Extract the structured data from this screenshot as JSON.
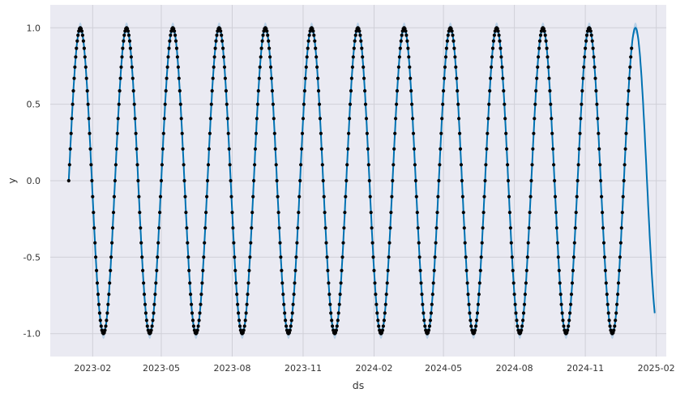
{
  "chart_data": {
    "type": "line",
    "title": "",
    "xlabel": "ds",
    "ylabel": "y",
    "x_range": [
      "2022-12-08",
      "2025-02-14"
    ],
    "ylim": [
      -1.15,
      1.15
    ],
    "grid": true,
    "legend": "none",
    "x_ticks": [
      {
        "date": "2023-02-01",
        "label": "2023-02"
      },
      {
        "date": "2023-05-01",
        "label": "2023-05"
      },
      {
        "date": "2023-08-01",
        "label": "2023-08"
      },
      {
        "date": "2023-11-01",
        "label": "2023-11"
      },
      {
        "date": "2024-02-01",
        "label": "2024-02"
      },
      {
        "date": "2024-05-01",
        "label": "2024-05"
      },
      {
        "date": "2024-08-01",
        "label": "2024-08"
      },
      {
        "date": "2024-11-01",
        "label": "2024-11"
      },
      {
        "date": "2025-02-01",
        "label": "2025-02"
      }
    ],
    "y_ticks": [
      {
        "value": 1.0,
        "label": "1.0"
      },
      {
        "value": 0.5,
        "label": "0.5"
      },
      {
        "value": 0.0,
        "label": "0.0"
      },
      {
        "value": -0.5,
        "label": "-0.5"
      },
      {
        "value": -1.0,
        "label": "-1.0"
      }
    ],
    "series": [
      {
        "kind": "observed-points",
        "formula": "y = sin(2π·t/60), t = days since first observation, daily observations",
        "start": "2023-01-01",
        "end": "2024-12-31",
        "color": "#000000"
      },
      {
        "kind": "forecast-line",
        "start": "2023-01-01",
        "end": "2025-01-30",
        "color": "#0072B2"
      },
      {
        "kind": "uncertainty-band",
        "start": "2023-01-01",
        "end": "2025-01-30",
        "color": "#A8C8E4"
      }
    ],
    "colors": {
      "plot_background": "#EAEAF2",
      "grid": "#D0D0D8",
      "forecast": "#0072B2",
      "band": "#A8C8E4",
      "points": "#000000"
    }
  }
}
